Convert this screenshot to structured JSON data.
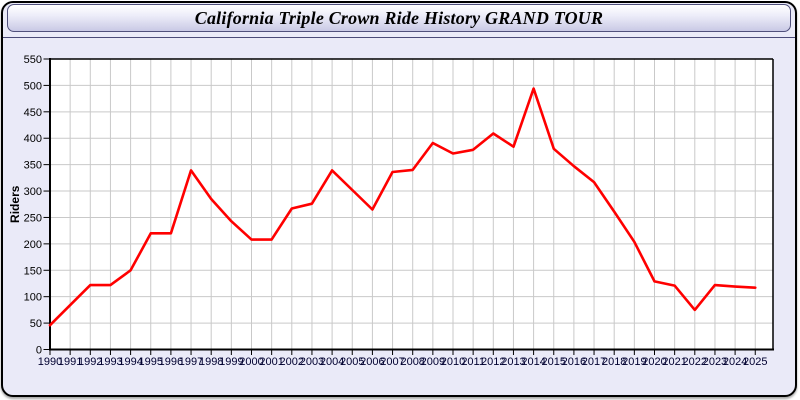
{
  "window": {
    "title": "California Triple Crown Ride History GRAND TOUR"
  },
  "colors": {
    "panel_bg": "#eaeaf8",
    "panel_border": "#000000",
    "titlebar_gradient_top": "#ffffff",
    "titlebar_gradient_bottom": "#c9c9e5",
    "plot_bg": "#ffffff",
    "grid": "#c9c9c9",
    "axis": "#000000",
    "x_tick_label": "#000030",
    "y_tick_label": "#000000",
    "line": "#ff0000"
  },
  "chart_data": {
    "type": "line",
    "title": "California Triple Crown Ride History GRAND TOUR",
    "xlabel": "",
    "ylabel": "Riders",
    "ylim": [
      0,
      550
    ],
    "ytick_step": 50,
    "grid": true,
    "legend_position": "none",
    "x": [
      1990,
      1991,
      1992,
      1993,
      1994,
      1995,
      1996,
      1997,
      1998,
      1999,
      2000,
      2001,
      2002,
      2003,
      2004,
      2005,
      2006,
      2007,
      2008,
      2009,
      2010,
      2011,
      2012,
      2013,
      2014,
      2015,
      2016,
      2017,
      2018,
      2019,
      2020,
      2021,
      2022,
      2023,
      2024,
      2025
    ],
    "series": [
      {
        "name": "Riders",
        "color": "#ff0000",
        "values": [
          46,
          84,
          122,
          122,
          150,
          220,
          220,
          339,
          285,
          243,
          208,
          208,
          267,
          276,
          339,
          302,
          265,
          336,
          340,
          391,
          371,
          378,
          409,
          384,
          494,
          380,
          347,
          317,
          261,
          204,
          129,
          121,
          75,
          122,
          119,
          117
        ]
      }
    ]
  }
}
